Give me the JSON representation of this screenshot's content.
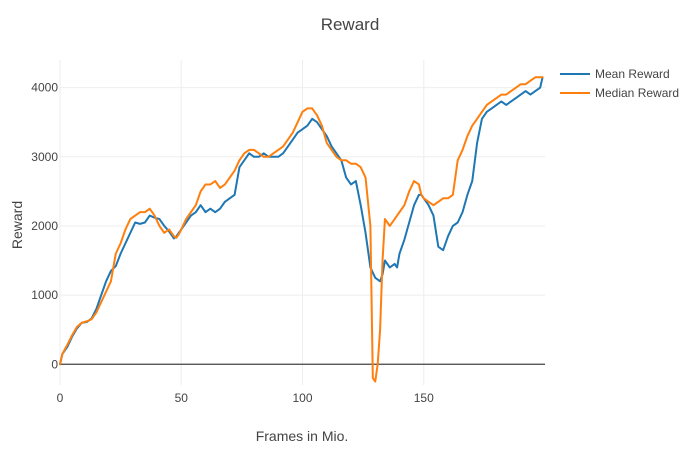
{
  "chart_data": {
    "type": "line",
    "title": "Reward",
    "xlabel": "Frames in Mio.",
    "ylabel": "Reward",
    "xlim": [
      0,
      200
    ],
    "ylim": [
      -300,
      4400
    ],
    "x_ticks": [
      0,
      50,
      100,
      150
    ],
    "y_ticks": [
      0,
      1000,
      2000,
      3000,
      4000
    ],
    "x_tick_labels": [
      "0",
      "50",
      "100",
      "150"
    ],
    "y_tick_labels": [
      "0",
      "1000",
      "2000",
      "3000",
      "4000"
    ],
    "grid": true,
    "legend": {
      "position": "top-right"
    },
    "series": [
      {
        "name": "Mean Reward",
        "color": "#1f77b4",
        "x": [
          0,
          1,
          3,
          5,
          7,
          9,
          11,
          13,
          15,
          17,
          19,
          21,
          23,
          25,
          27,
          29,
          31,
          33,
          35,
          37,
          39,
          41,
          43,
          45,
          47,
          48,
          49,
          50,
          52,
          54,
          56,
          58,
          60,
          62,
          64,
          66,
          68,
          70,
          72,
          74,
          76,
          78,
          80,
          82,
          84,
          86,
          88,
          90,
          92,
          94,
          96,
          98,
          100,
          102,
          104,
          106,
          108,
          110,
          112,
          114,
          116,
          118,
          120,
          122,
          124,
          126,
          128,
          130,
          132,
          133,
          134,
          135,
          136,
          138,
          139,
          140,
          142,
          144,
          146,
          148,
          149,
          150,
          152,
          154,
          156,
          158,
          160,
          162,
          164,
          166,
          168,
          170,
          172,
          174,
          176,
          178,
          180,
          182,
          184,
          186,
          188,
          190,
          192,
          194,
          196,
          198,
          199
        ],
        "y": [
          0,
          150,
          250,
          400,
          520,
          600,
          610,
          660,
          800,
          1000,
          1200,
          1350,
          1420,
          1600,
          1750,
          1900,
          2050,
          2030,
          2050,
          2150,
          2120,
          2100,
          2000,
          1920,
          1820,
          1850,
          1900,
          1950,
          2050,
          2150,
          2200,
          2300,
          2200,
          2250,
          2200,
          2250,
          2350,
          2400,
          2450,
          2850,
          2950,
          3050,
          3000,
          3000,
          3050,
          3000,
          3000,
          3000,
          3050,
          3150,
          3250,
          3350,
          3400,
          3450,
          3550,
          3500,
          3400,
          3300,
          3150,
          3050,
          2950,
          2700,
          2600,
          2650,
          2300,
          1900,
          1400,
          1250,
          1200,
          1300,
          1500,
          1450,
          1400,
          1450,
          1400,
          1600,
          1800,
          2050,
          2300,
          2450,
          2450,
          2400,
          2300,
          2150,
          1700,
          1650,
          1850,
          2000,
          2050,
          2200,
          2450,
          2650,
          3200,
          3550,
          3650,
          3700,
          3750,
          3800,
          3750,
          3800,
          3850,
          3900,
          3950,
          3900,
          3950,
          4000,
          4150
        ]
      },
      {
        "name": "Median Reward",
        "color": "#ff7f0e",
        "x": [
          0,
          1,
          3,
          5,
          7,
          9,
          11,
          13,
          15,
          17,
          19,
          21,
          23,
          25,
          27,
          29,
          31,
          33,
          35,
          37,
          39,
          41,
          43,
          45,
          47,
          48,
          49,
          50,
          52,
          54,
          56,
          58,
          60,
          62,
          64,
          66,
          68,
          70,
          72,
          74,
          76,
          78,
          80,
          82,
          84,
          86,
          88,
          90,
          92,
          94,
          96,
          98,
          100,
          102,
          104,
          106,
          108,
          110,
          112,
          114,
          116,
          118,
          120,
          122,
          124,
          126,
          128,
          129,
          130,
          131,
          132,
          133,
          134,
          135,
          136,
          138,
          139,
          140,
          142,
          144,
          146,
          148,
          149,
          150,
          152,
          154,
          156,
          158,
          160,
          162,
          164,
          166,
          168,
          170,
          172,
          174,
          176,
          178,
          180,
          182,
          184,
          186,
          188,
          190,
          192,
          194,
          196,
          198,
          199
        ],
        "y": [
          0,
          150,
          280,
          420,
          540,
          600,
          620,
          650,
          750,
          900,
          1050,
          1200,
          1600,
          1750,
          1950,
          2100,
          2150,
          2200,
          2200,
          2250,
          2150,
          2000,
          1900,
          1950,
          1850,
          1830,
          1880,
          1950,
          2100,
          2200,
          2300,
          2500,
          2600,
          2600,
          2650,
          2550,
          2600,
          2700,
          2800,
          2950,
          3050,
          3100,
          3100,
          3050,
          3000,
          3000,
          3050,
          3100,
          3150,
          3250,
          3350,
          3500,
          3650,
          3700,
          3700,
          3600,
          3450,
          3200,
          3100,
          3000,
          2950,
          2950,
          2900,
          2900,
          2850,
          2700,
          2000,
          -200,
          -250,
          0,
          500,
          1500,
          2100,
          2050,
          2000,
          2100,
          2150,
          2200,
          2300,
          2500,
          2650,
          2600,
          2450,
          2400,
          2350,
          2300,
          2350,
          2400,
          2400,
          2450,
          2950,
          3100,
          3300,
          3450,
          3550,
          3650,
          3750,
          3800,
          3850,
          3900,
          3900,
          3950,
          4000,
          4050,
          4050,
          4100,
          4150,
          4150,
          4150
        ]
      }
    ]
  }
}
